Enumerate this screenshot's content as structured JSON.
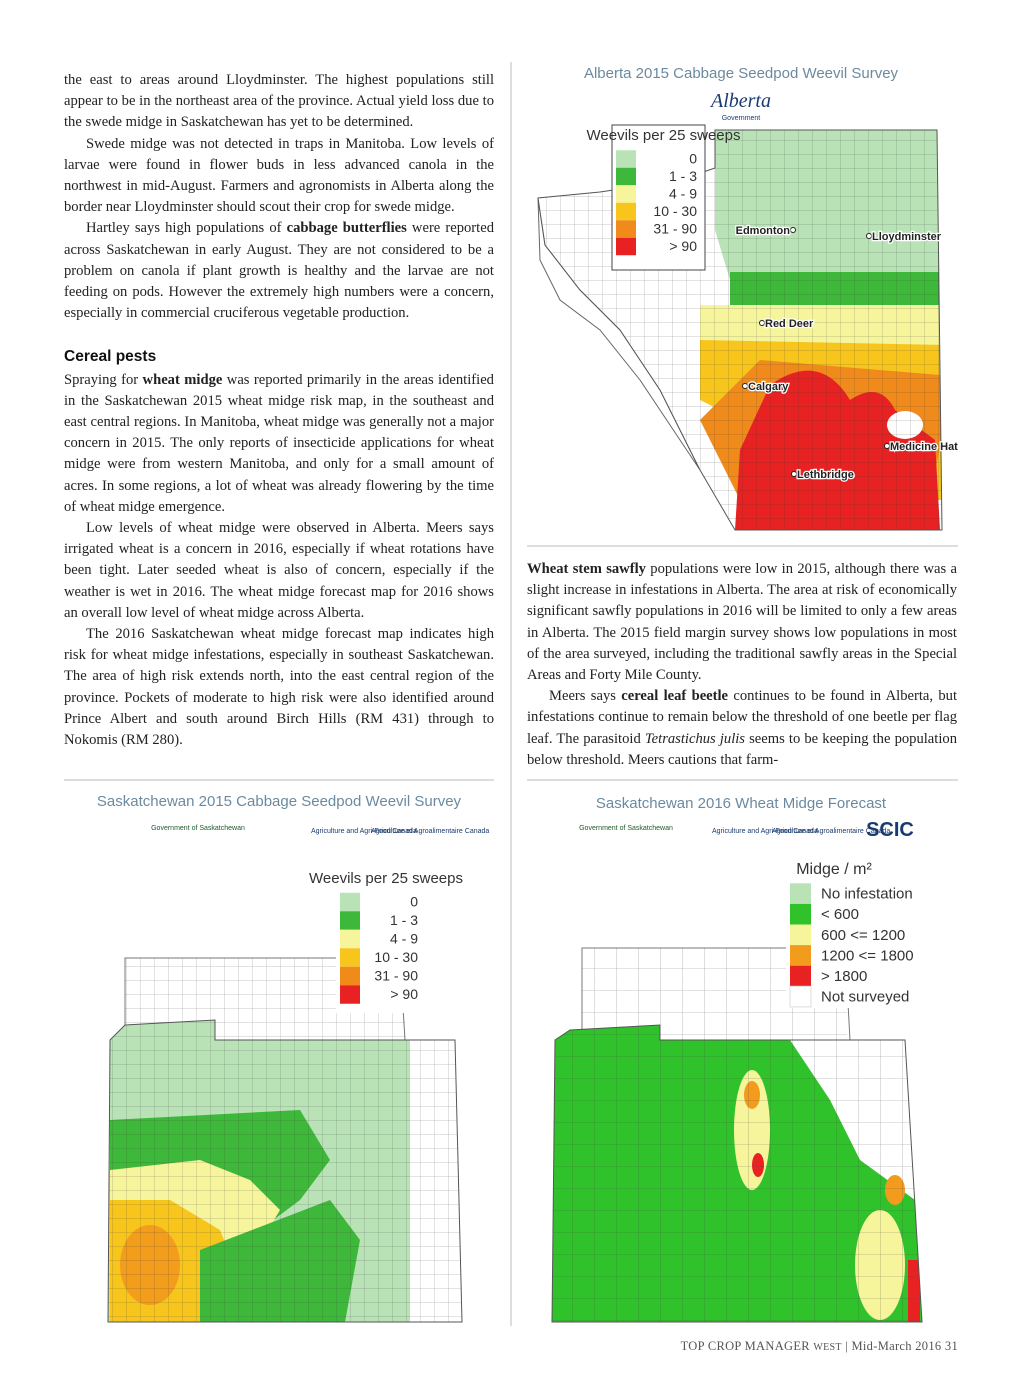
{
  "left_column": {
    "paragraphs": [
      {
        "indent": false,
        "runs": [
          {
            "text": "the east to areas around Lloydminster. The highest populations still appear to be in the northeast area of the province. Actual yield loss due to the swede midge in Saskatchewan has yet to be determined."
          }
        ]
      },
      {
        "indent": true,
        "runs": [
          {
            "text": "Swede midge was not detected in traps in Manitoba. Low levels of larvae were found in flower buds in less advanced canola in the northwest in mid-August. Farmers and agronomists in Alberta along the border near Lloydminster should scout their crop for swede midge."
          }
        ]
      },
      {
        "indent": true,
        "runs": [
          {
            "text": "Hartley says high populations of "
          },
          {
            "text": "cabbage butterflies",
            "style": "bold"
          },
          {
            "text": " were reported across Saskatchewan in early August. They are not considered to be a problem on canola if plant growth is healthy and the larvae are not feeding on pods. However the extremely high numbers were a concern, especially in commercial cruciferous vegetable production."
          }
        ]
      }
    ],
    "heading": "Cereal pests",
    "paragraphs_after_heading": [
      {
        "indent": false,
        "runs": [
          {
            "text": "Spraying for "
          },
          {
            "text": "wheat midge",
            "style": "bold"
          },
          {
            "text": " was reported primarily in the areas identified in the Saskatchewan 2015 wheat midge risk map, in the southeast and east central regions. In Manitoba, wheat midge was generally not a major concern in 2015. The only reports of insecticide applications for wheat midge were from western Manitoba, and only for a small amount of acres. In some regions, a lot of wheat was already flowering by the time of wheat midge emergence."
          }
        ]
      },
      {
        "indent": true,
        "runs": [
          {
            "text": "Low levels of wheat midge were observed in Alberta. Meers says irrigated wheat is a concern in 2016, especially if wheat rotations have been tight. Later seeded wheat is also of concern, especially if the weather is wet in 2016. The wheat midge forecast map for 2016 shows an overall low level of wheat midge across Alberta."
          }
        ]
      },
      {
        "indent": true,
        "runs": [
          {
            "text": "The 2016 Saskatchewan wheat midge forecast map indicates high risk for wheat midge infestations, especially in southeast Saskatchewan. The area of high risk extends north, into the east central region of the province. Pockets of moderate to high risk were also identified around Prince Albert and south around Birch Hills (RM 431) through to Nokomis (RM 280)."
          }
        ]
      }
    ]
  },
  "right_column": {
    "paragraphs": [
      {
        "indent": false,
        "runs": [
          {
            "text": "Wheat stem sawfly",
            "style": "bold"
          },
          {
            "text": " populations were low in 2015, although there was a slight increase in infestations in Alberta. The area at risk of economically significant sawfly populations in 2016 will be limited to only a few areas in Alberta. The 2015 field margin survey shows low populations in most of the area surveyed, including the traditional sawfly areas in the Special Areas and Forty Mile County."
          }
        ]
      },
      {
        "indent": true,
        "runs": [
          {
            "text": "Meers says "
          },
          {
            "text": "cereal leaf beetle",
            "style": "bold"
          },
          {
            "text": " continues to be found in Alberta, but infestations continue to remain below the threshold of one beetle per flag leaf. The parasitoid "
          },
          {
            "text": "Tetrastichus julis",
            "style": "italic"
          },
          {
            "text": " seems to be keeping the population below threshold. Meers cautions that farm-"
          }
        ]
      }
    ]
  },
  "figures": [
    {
      "title": "Alberta 2015 Cabbage Seedpod Weevil Survey",
      "logos": [
        "Alberta",
        "Government"
      ],
      "legend": {
        "title": "Weevils per 25 sweeps",
        "items": [
          {
            "label": "0",
            "color": "#b9e2b6"
          },
          {
            "label": "1 - 3",
            "color": "#3db83a"
          },
          {
            "label": "4 - 9",
            "color": "#f6f59c"
          },
          {
            "label": "10 - 30",
            "color": "#f7c51c"
          },
          {
            "label": "31 - 90",
            "color": "#f08b1b"
          },
          {
            "label": "> 90",
            "color": "#e82222"
          }
        ]
      },
      "places": [
        "Edmonton",
        "Lloydminster",
        "Red Deer",
        "Calgary",
        "Medicine Hat",
        "Lethbridge"
      ]
    },
    {
      "title": "Saskatchewan 2015 Cabbage Seedpod Weevil Survey",
      "logos": [
        "Government of Saskatchewan",
        "Agriculture and Agri-Food Canada",
        "Agriculture et Agroalimentaire Canada"
      ],
      "legend": {
        "title": "Weevils per 25 sweeps",
        "items": [
          {
            "label": "0",
            "color": "#b9e2b6"
          },
          {
            "label": "1 - 3",
            "color": "#3db83a"
          },
          {
            "label": "4 - 9",
            "color": "#f6f59c"
          },
          {
            "label": "10 - 30",
            "color": "#f7c51c"
          },
          {
            "label": "31 - 90",
            "color": "#f08b1b"
          },
          {
            "label": "> 90",
            "color": "#e82222"
          }
        ]
      }
    },
    {
      "title": "Saskatchewan 2016 Wheat Midge Forecast",
      "logos": [
        "Government of Saskatchewan",
        "Agriculture and Agri-Food Canada",
        "Agriculture et Agroalimentaire Canada",
        "SCIC"
      ],
      "legend": {
        "title": "Midge / m²",
        "items": [
          {
            "label": "No infestation",
            "color": "#b9e2b6"
          },
          {
            "label": "< 600",
            "color": "#2fc22b"
          },
          {
            "label": "600 <= 1200",
            "color": "#f6f59c"
          },
          {
            "label": "1200 <= 1800",
            "color": "#f29b1d"
          },
          {
            "label": "> 1800",
            "color": "#e82222"
          },
          {
            "label": "Not surveyed",
            "color": "#ffffff"
          }
        ]
      }
    }
  ],
  "footer": {
    "publication": "TOP CROP MANAGER",
    "edition": "WEST",
    "separator": "|",
    "issue": "Mid-March 2016",
    "page": "31"
  }
}
